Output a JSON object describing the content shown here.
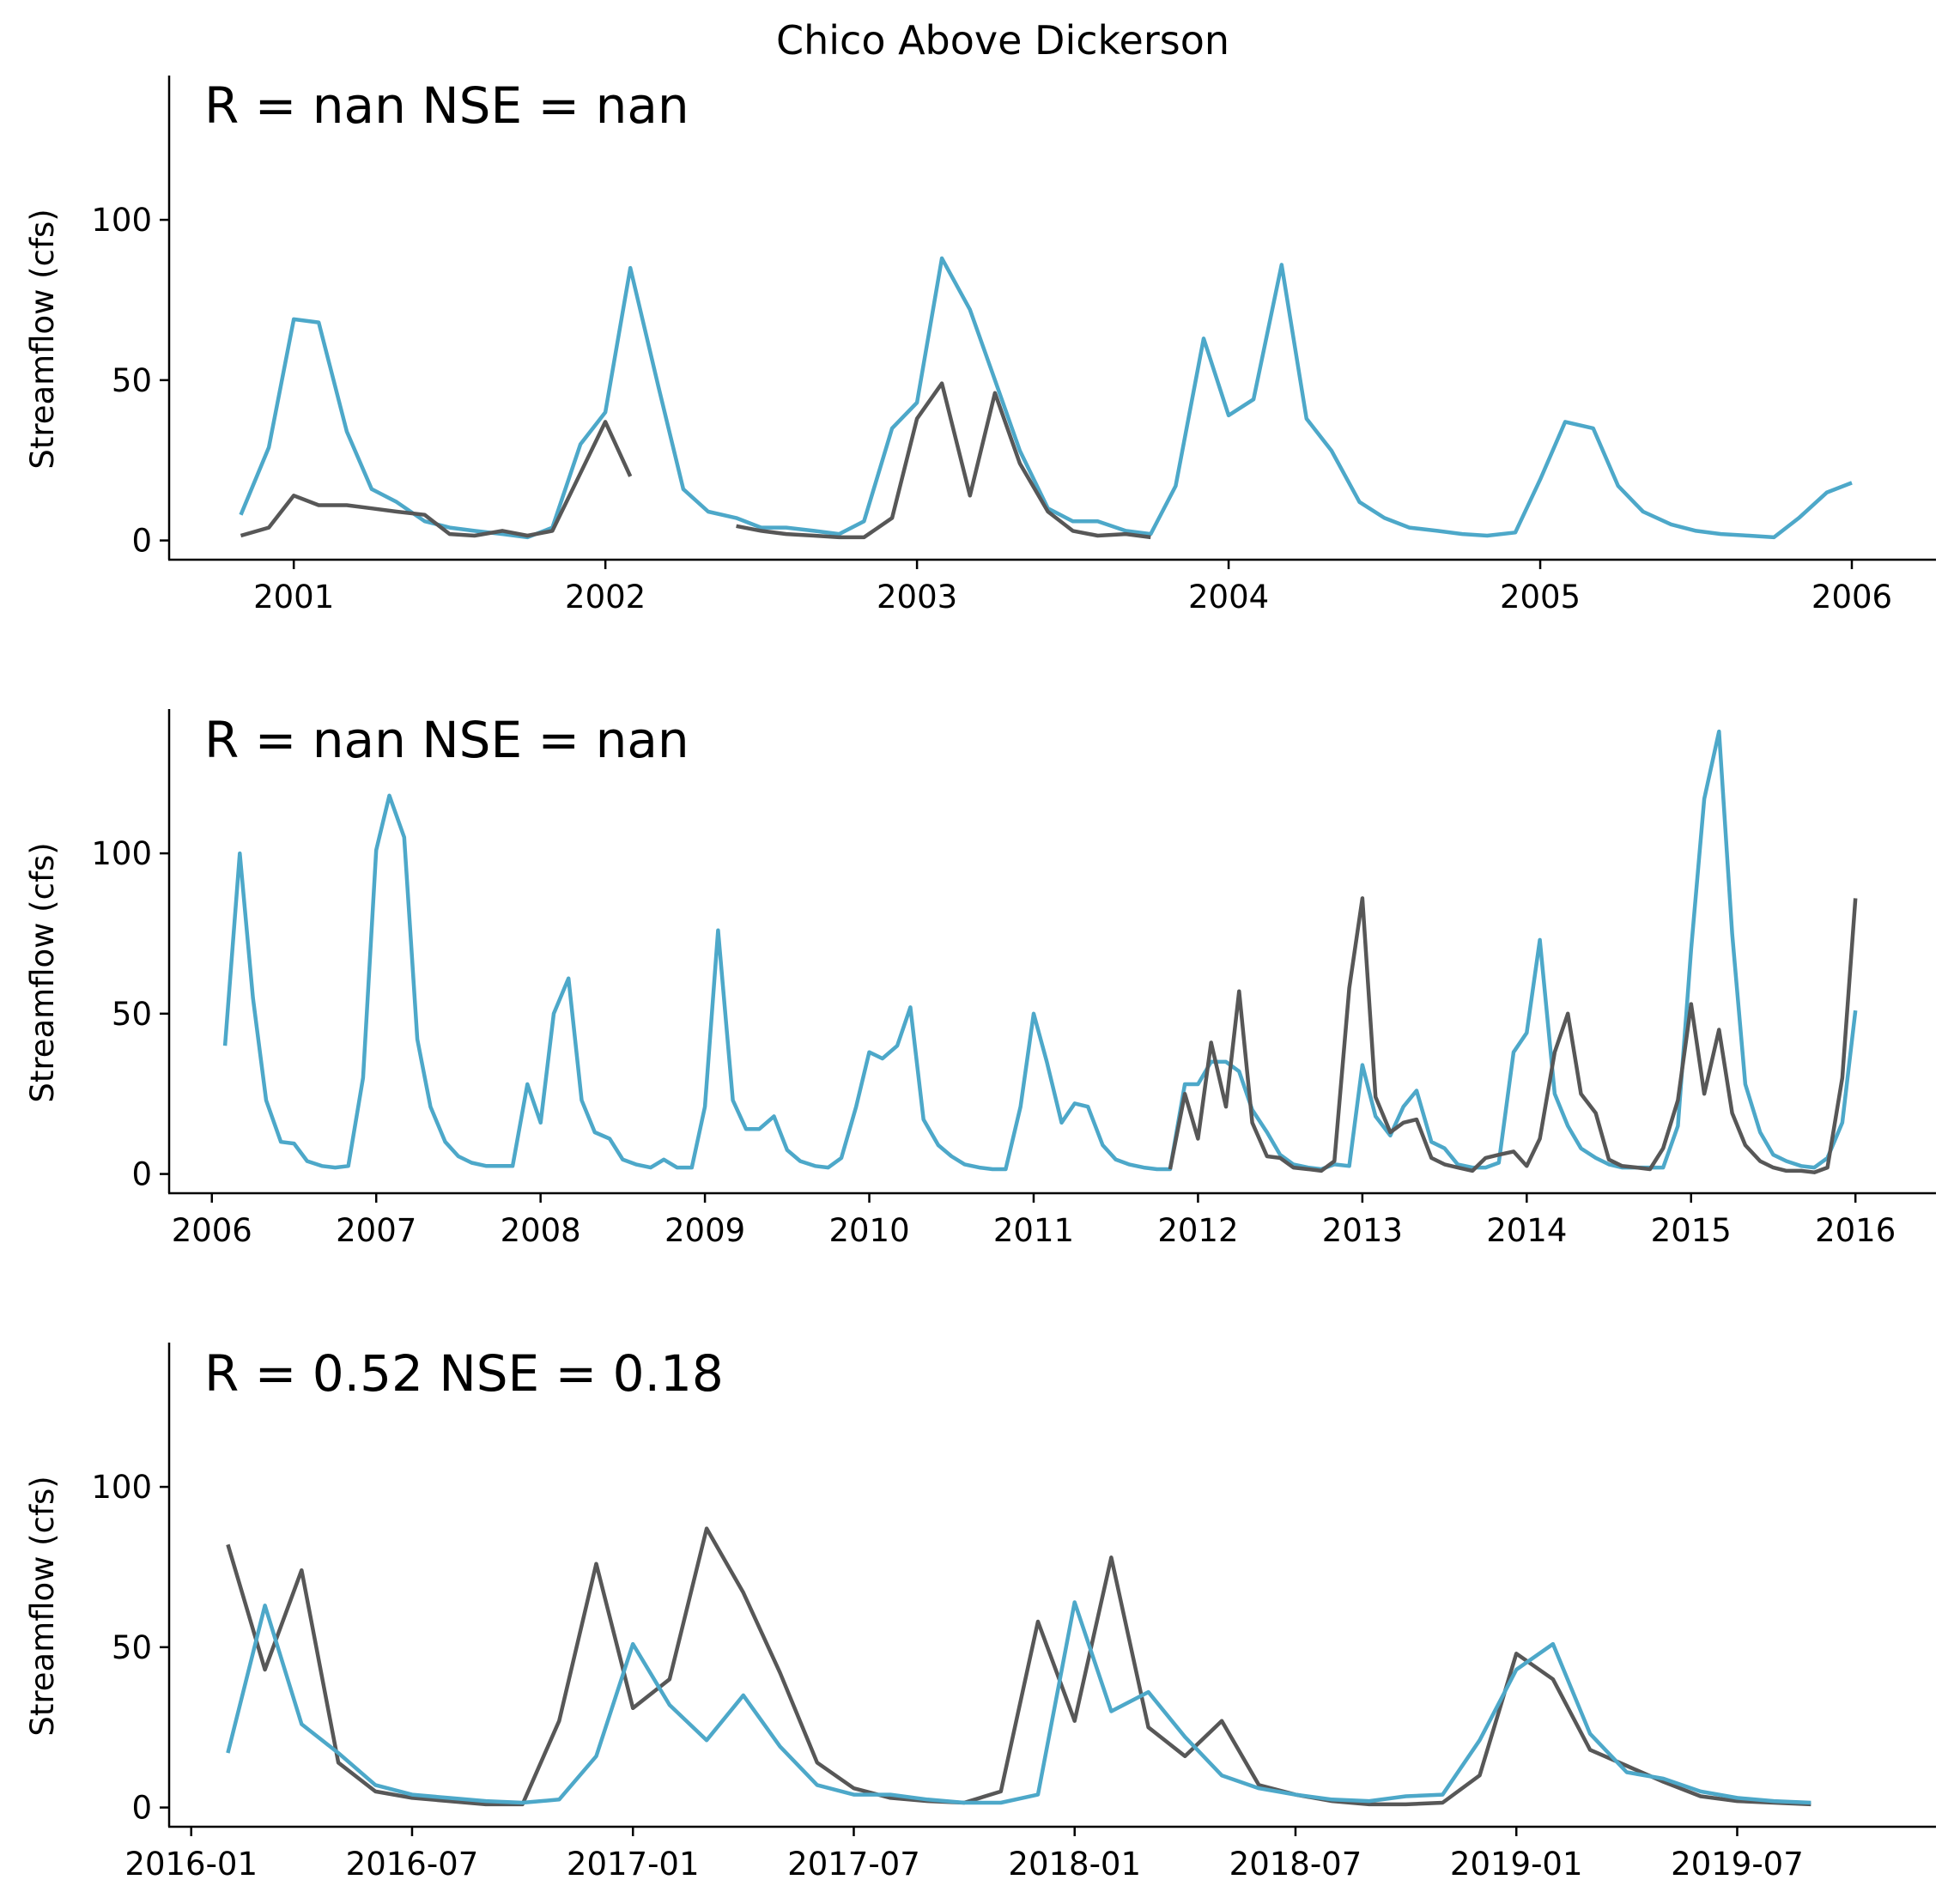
{
  "figure": {
    "title": "Chico Above Dickerson"
  },
  "colors": {
    "observed": "#575757",
    "simulated": "#4da8c9"
  },
  "chart_data": [
    {
      "type": "line",
      "stat_text": "R = nan  NSE = nan",
      "ylabel": "Streamflow (cfs)",
      "ylim": [
        -6,
        145
      ],
      "yticks": [
        0,
        50,
        100
      ],
      "xlim": [
        2000.6,
        2006.27
      ],
      "xticks": [
        {
          "v": 2001,
          "label": "2001"
        },
        {
          "v": 2002,
          "label": "2002"
        },
        {
          "v": 2003,
          "label": "2003"
        },
        {
          "v": 2004,
          "label": "2004"
        },
        {
          "v": 2005,
          "label": "2005"
        },
        {
          "v": 2006,
          "label": "2006"
        }
      ],
      "series": [
        {
          "role": "simulated",
          "x": [
            2000.83,
            2000.92,
            2001.0,
            2001.08,
            2001.17,
            2001.25,
            2001.33,
            2001.42,
            2001.5,
            2001.58,
            2001.67,
            2001.75,
            2001.83,
            2001.92,
            2002.0,
            2002.08,
            2002.17,
            2002.25,
            2002.33,
            2002.42,
            2002.5,
            2002.58,
            2002.67,
            2002.75,
            2002.83,
            2002.92,
            2003.0,
            2003.08,
            2003.17,
            2003.25,
            2003.33,
            2003.42,
            2003.5,
            2003.58,
            2003.67,
            2003.75,
            2003.83,
            2003.92,
            2004.0,
            2004.08,
            2004.17,
            2004.25,
            2004.33,
            2004.42,
            2004.5,
            2004.58,
            2004.67,
            2004.75,
            2004.83,
            2004.92,
            2005.0,
            2005.08,
            2005.17,
            2005.25,
            2005.33,
            2005.42,
            2005.5,
            2005.58,
            2005.67,
            2005.75,
            2005.83,
            2005.92,
            2006.0
          ],
          "y": [
            8,
            29,
            69,
            68,
            34,
            16,
            12,
            6,
            4,
            3,
            2,
            1,
            4,
            30,
            40,
            85,
            48,
            16,
            9,
            7,
            4,
            4,
            3,
            2,
            6,
            35,
            43,
            88,
            72,
            50,
            28,
            10,
            6,
            6,
            3,
            2,
            17,
            63,
            39,
            44,
            86,
            38,
            28,
            12,
            7,
            4,
            3,
            2,
            1.5,
            2.5,
            19,
            37,
            35,
            17,
            9,
            5,
            3,
            2,
            1.5,
            1,
            7,
            15,
            18
          ]
        },
        {
          "role": "observed",
          "segments": [
            {
              "x": [
                2000.83,
                2000.92,
                2001.0,
                2001.08,
                2001.17,
                2001.25,
                2001.33,
                2001.42,
                2001.5,
                2001.58,
                2001.67,
                2001.75,
                2001.83,
                2001.92,
                2002.0,
                2002.08
              ],
              "y": [
                1.5,
                4,
                14,
                11,
                11,
                10,
                9,
                8,
                2,
                1.5,
                3,
                1.5,
                3,
                21,
                37,
                20
              ]
            },
            {
              "x": [
                2002.42,
                2002.5,
                2002.58,
                2002.67,
                2002.75,
                2002.83,
                2002.92,
                2003.0,
                2003.08,
                2003.17,
                2003.25,
                2003.33,
                2003.42,
                2003.5,
                2003.58,
                2003.67,
                2003.75
              ],
              "y": [
                4.5,
                3,
                2,
                1.5,
                1,
                1,
                7,
                38,
                49,
                14,
                46,
                24,
                9,
                3,
                1.5,
                2,
                1
              ]
            }
          ]
        }
      ]
    },
    {
      "type": "line",
      "stat_text": "R = nan  NSE = nan",
      "ylabel": "Streamflow (cfs)",
      "ylim": [
        -6,
        145
      ],
      "yticks": [
        0,
        50,
        100
      ],
      "xlim": [
        2005.74,
        2016.49
      ],
      "xticks": [
        {
          "v": 2006,
          "label": "2006"
        },
        {
          "v": 2007,
          "label": "2007"
        },
        {
          "v": 2008,
          "label": "2008"
        },
        {
          "v": 2009,
          "label": "2009"
        },
        {
          "v": 2010,
          "label": "2010"
        },
        {
          "v": 2011,
          "label": "2011"
        },
        {
          "v": 2012,
          "label": "2012"
        },
        {
          "v": 2013,
          "label": "2013"
        },
        {
          "v": 2014,
          "label": "2014"
        },
        {
          "v": 2015,
          "label": "2015"
        },
        {
          "v": 2016,
          "label": "2016"
        }
      ],
      "series": [
        {
          "role": "simulated",
          "x": [
            2006.08,
            2006.17,
            2006.25,
            2006.33,
            2006.42,
            2006.5,
            2006.58,
            2006.67,
            2006.75,
            2006.83,
            2006.92,
            2007.0,
            2007.08,
            2007.17,
            2007.25,
            2007.33,
            2007.42,
            2007.5,
            2007.58,
            2007.67,
            2007.75,
            2007.83,
            2007.92,
            2008.0,
            2008.08,
            2008.17,
            2008.25,
            2008.33,
            2008.42,
            2008.5,
            2008.58,
            2008.67,
            2008.75,
            2008.83,
            2008.92,
            2009.0,
            2009.08,
            2009.17,
            2009.25,
            2009.33,
            2009.42,
            2009.5,
            2009.58,
            2009.67,
            2009.75,
            2009.83,
            2009.92,
            2010.0,
            2010.08,
            2010.17,
            2010.25,
            2010.33,
            2010.42,
            2010.5,
            2010.58,
            2010.67,
            2010.75,
            2010.83,
            2010.92,
            2011.0,
            2011.08,
            2011.17,
            2011.25,
            2011.33,
            2011.42,
            2011.5,
            2011.58,
            2011.67,
            2011.75,
            2011.83,
            2011.92,
            2012.0,
            2012.08,
            2012.17,
            2012.25,
            2012.33,
            2012.42,
            2012.5,
            2012.58,
            2012.67,
            2012.75,
            2012.83,
            2012.92,
            2013.0,
            2013.08,
            2013.17,
            2013.25,
            2013.33,
            2013.42,
            2013.5,
            2013.58,
            2013.67,
            2013.75,
            2013.83,
            2013.92,
            2014.0,
            2014.08,
            2014.17,
            2014.25,
            2014.33,
            2014.42,
            2014.5,
            2014.58,
            2014.67,
            2014.75,
            2014.83,
            2014.92,
            2015.0,
            2015.08,
            2015.17,
            2015.25,
            2015.33,
            2015.42,
            2015.5,
            2015.58,
            2015.67,
            2015.75,
            2015.83,
            2015.92,
            2016.0
          ],
          "y": [
            40,
            100,
            55,
            23,
            10,
            9.5,
            4,
            2.5,
            2,
            2.5,
            30,
            101,
            118,
            105,
            42,
            21,
            10,
            5.5,
            3.5,
            2.5,
            2.5,
            2.5,
            28,
            16,
            50,
            61,
            23,
            13,
            11,
            4.5,
            3,
            2,
            4.5,
            2,
            2,
            21,
            76,
            23,
            14,
            14,
            18,
            7.5,
            4,
            2.5,
            2,
            5,
            21,
            38,
            36,
            40,
            52,
            17,
            9,
            5.5,
            3,
            2,
            1.5,
            1.5,
            21,
            50,
            35,
            16,
            22,
            21,
            9,
            4.5,
            3,
            2,
            1.5,
            1.5,
            28,
            28,
            35,
            35,
            32,
            20,
            13,
            6,
            3,
            2,
            1.5,
            3,
            2.5,
            34,
            18,
            12,
            21,
            26,
            10,
            8,
            3,
            2,
            2,
            3.5,
            38,
            44,
            73,
            25,
            15,
            8,
            5,
            3,
            2,
            2,
            2,
            2,
            15,
            70,
            117,
            138,
            75,
            28,
            13,
            6,
            4,
            2.5,
            2,
            5,
            16,
            51
          ]
        },
        {
          "role": "observed",
          "x": [
            2011.83,
            2011.92,
            2012.0,
            2012.08,
            2012.17,
            2012.25,
            2012.33,
            2012.42,
            2012.5,
            2012.58,
            2012.67,
            2012.75,
            2012.83,
            2012.92,
            2013.0,
            2013.08,
            2013.17,
            2013.25,
            2013.33,
            2013.42,
            2013.5,
            2013.58,
            2013.67,
            2013.75,
            2013.83,
            2013.92,
            2014.0,
            2014.08,
            2014.17,
            2014.25,
            2014.33,
            2014.42,
            2014.5,
            2014.58,
            2014.67,
            2014.75,
            2014.83,
            2014.92,
            2015.0,
            2015.08,
            2015.17,
            2015.25,
            2015.33,
            2015.42,
            2015.5,
            2015.58,
            2015.67,
            2015.75,
            2015.83,
            2015.92,
            2016.0
          ],
          "y": [
            1.5,
            25,
            11,
            41,
            21,
            57,
            16,
            5.5,
            5,
            2,
            1.5,
            1,
            4,
            58,
            86,
            24,
            13,
            16,
            17,
            5,
            3,
            2,
            1,
            5,
            6,
            7,
            2.5,
            11,
            38,
            50,
            25,
            19,
            4.5,
            2.5,
            2,
            1.5,
            8,
            23,
            53,
            25,
            45,
            19,
            9,
            4,
            2,
            1,
            1,
            0.5,
            2,
            30,
            86
          ]
        }
      ]
    },
    {
      "type": "line",
      "stat_text": "R = 0.52  NSE = 0.18",
      "ylabel": "Streamflow (cfs)",
      "ylim": [
        -6,
        145
      ],
      "yticks": [
        0,
        50,
        100
      ],
      "xlim": [
        2015.95,
        2019.95
      ],
      "xticks": [
        {
          "v": 2016.0,
          "label": "2016-01"
        },
        {
          "v": 2016.5,
          "label": "2016-07"
        },
        {
          "v": 2017.0,
          "label": "2017-01"
        },
        {
          "v": 2017.5,
          "label": "2017-07"
        },
        {
          "v": 2018.0,
          "label": "2018-01"
        },
        {
          "v": 2018.5,
          "label": "2018-07"
        },
        {
          "v": 2019.0,
          "label": "2019-01"
        },
        {
          "v": 2019.5,
          "label": "2019-07"
        }
      ],
      "series": [
        {
          "role": "observed",
          "x": [
            2016.083,
            2016.167,
            2016.25,
            2016.333,
            2016.417,
            2016.5,
            2016.583,
            2016.667,
            2016.75,
            2016.833,
            2016.917,
            2017.0,
            2017.083,
            2017.167,
            2017.25,
            2017.333,
            2017.417,
            2017.5,
            2017.583,
            2017.667,
            2017.75,
            2017.833,
            2017.917,
            2018.0,
            2018.083,
            2018.167,
            2018.25,
            2018.333,
            2018.417,
            2018.5,
            2018.583,
            2018.667,
            2018.75,
            2018.833,
            2018.917,
            2019.0,
            2019.083,
            2019.167,
            2019.25,
            2019.333,
            2019.417,
            2019.5,
            2019.583,
            2019.667
          ],
          "y": [
            82,
            43,
            74,
            14,
            5,
            3,
            2,
            1,
            1,
            27,
            76,
            31,
            40,
            87,
            67,
            42,
            14,
            6,
            3,
            2,
            1.5,
            5,
            58,
            27,
            78,
            25,
            16,
            27,
            7,
            4,
            2,
            1,
            1,
            1.5,
            10,
            48,
            40,
            18,
            13,
            8,
            3.5,
            2,
            1.5,
            1
          ]
        },
        {
          "role": "simulated",
          "x": [
            2016.083,
            2016.167,
            2016.25,
            2016.333,
            2016.417,
            2016.5,
            2016.583,
            2016.667,
            2016.75,
            2016.833,
            2016.917,
            2017.0,
            2017.083,
            2017.167,
            2017.25,
            2017.333,
            2017.417,
            2017.5,
            2017.583,
            2017.667,
            2017.75,
            2017.833,
            2017.917,
            2018.0,
            2018.083,
            2018.167,
            2018.25,
            2018.333,
            2018.417,
            2018.5,
            2018.583,
            2018.667,
            2018.75,
            2018.833,
            2018.917,
            2019.0,
            2019.083,
            2019.167,
            2019.25,
            2019.333,
            2019.417,
            2019.5,
            2019.583,
            2019.667
          ],
          "y": [
            17,
            63,
            26,
            17,
            7,
            4,
            3,
            2,
            1.5,
            2.5,
            16,
            51,
            32,
            21,
            35,
            19,
            7,
            4,
            4,
            2.5,
            1.5,
            1.5,
            4,
            64,
            30,
            36,
            22,
            10,
            6,
            4,
            2.5,
            2,
            3.5,
            4,
            21,
            43,
            51,
            23,
            11,
            9,
            5,
            3,
            2,
            1.5
          ]
        }
      ]
    }
  ]
}
